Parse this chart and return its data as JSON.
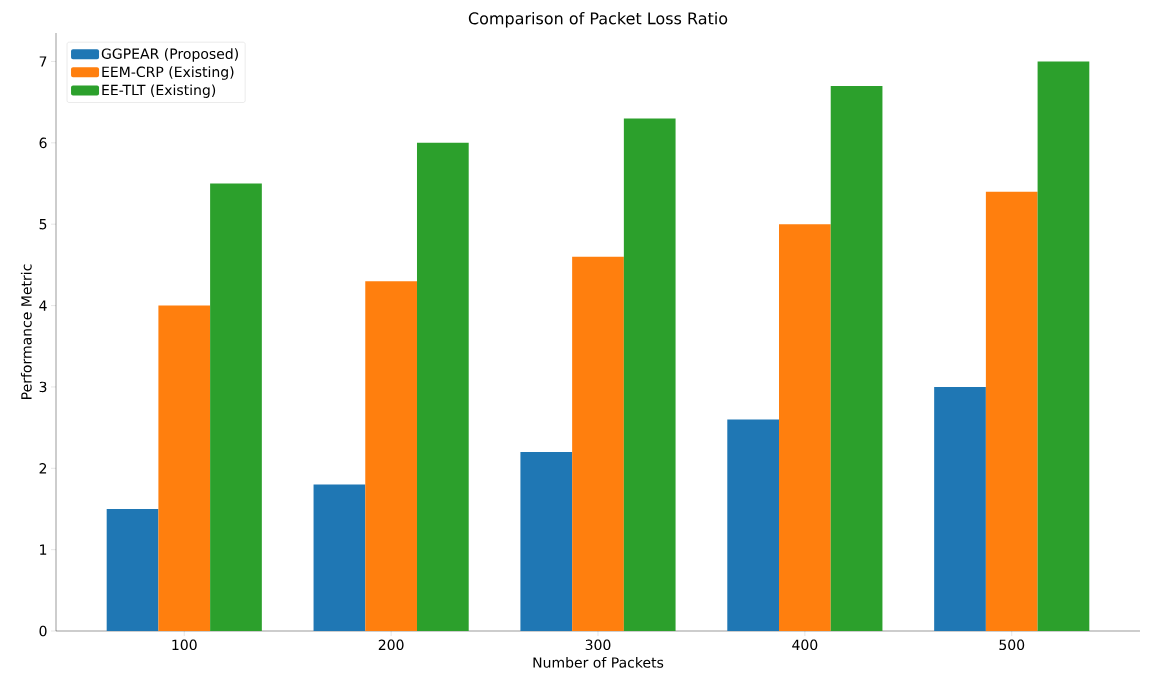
{
  "chart_data": {
    "type": "bar",
    "title": "Comparison of Packet Loss Ratio",
    "xlabel": "Number of Packets",
    "ylabel": "Performance Metric",
    "categories": [
      "100",
      "200",
      "300",
      "400",
      "500"
    ],
    "series": [
      {
        "name": "GGPEAR (Proposed)",
        "color": "#1f77b4",
        "values": [
          1.5,
          1.8,
          2.2,
          2.6,
          3.0
        ]
      },
      {
        "name": "EEM-CRP (Existing)",
        "color": "#ff7f0e",
        "values": [
          4.0,
          4.3,
          4.6,
          5.0,
          5.4
        ]
      },
      {
        "name": "EE-TLT (Existing)",
        "color": "#2ca02c",
        "values": [
          5.5,
          6.0,
          6.3,
          6.7,
          7.0
        ]
      }
    ],
    "ylim": [
      0,
      7.35
    ],
    "yticks": [
      0,
      1,
      2,
      3,
      4,
      5,
      6,
      7
    ],
    "legend": "top left"
  }
}
